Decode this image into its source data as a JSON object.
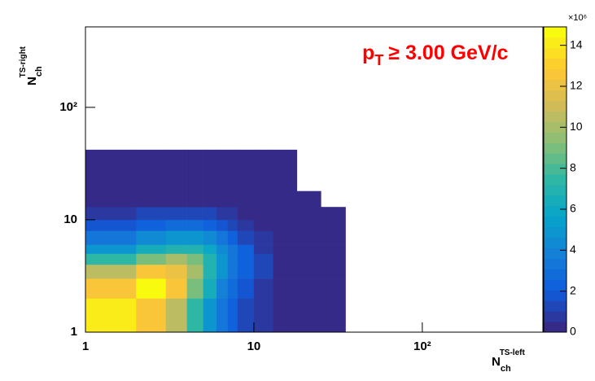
{
  "chart_data": {
    "type": "heatmap",
    "annotation": {
      "base": "p",
      "sub": "T",
      "rest": "≥ 3.00 GeV/c"
    },
    "annotation_color": "#ff0000",
    "x_label": {
      "base": "N",
      "sub": "ch",
      "sup": "TS-left"
    },
    "y_label": {
      "base": "N",
      "sub": "ch",
      "sup": "TS-right"
    },
    "x_scale": "log",
    "y_scale": "log",
    "xlim": [
      1,
      520
    ],
    "ylim": [
      1,
      520
    ],
    "xticks": [
      1,
      10,
      {
        "value": 100,
        "label": "10²"
      }
    ],
    "yticks": [
      1,
      10,
      {
        "value": 100,
        "label": "10²"
      }
    ],
    "x_edges": [
      1,
      2,
      3,
      4,
      5,
      6,
      7,
      8,
      10,
      13,
      18,
      25,
      35
    ],
    "y_edges": [
      1,
      2,
      3,
      4,
      5,
      6,
      8,
      10,
      13,
      18,
      25,
      42
    ],
    "z": [
      [
        14,
        12.5,
        10.5,
        7.5,
        5,
        3.5,
        2.5,
        1.5,
        0.8,
        0.3,
        0.1,
        0.05
      ],
      [
        12.5,
        14.5,
        12.5,
        9,
        6.5,
        4,
        3,
        2,
        1,
        0.4,
        0.1,
        0.05
      ],
      [
        10.5,
        12.5,
        12,
        10,
        7,
        5,
        3.5,
        2.5,
        1.2,
        0.5,
        0.15,
        0.05
      ],
      [
        7.5,
        9,
        10,
        9,
        7,
        5,
        3.5,
        2.5,
        1.2,
        0.5,
        0.15,
        0.05
      ],
      [
        5,
        6.5,
        7,
        7,
        6,
        4.5,
        3.5,
        2.5,
        1,
        0.4,
        0.1,
        0.04
      ],
      [
        3.5,
        4.5,
        5,
        5,
        4.5,
        3.5,
        2.5,
        1.5,
        0.7,
        0.3,
        0.1,
        0.03
      ],
      [
        2,
        2.5,
        3,
        3,
        2.5,
        2,
        1.5,
        1,
        0.5,
        0.2,
        0.05,
        0.02
      ],
      [
        1,
        1.2,
        1.5,
        1.5,
        1.2,
        1,
        0.8,
        0.5,
        0.3,
        0.1,
        0.03,
        0.01
      ],
      [
        0.4,
        0.5,
        0.5,
        0.5,
        0.4,
        0.3,
        0.2,
        0.15,
        0.1,
        0.05,
        0.01,
        null
      ],
      [
        0.1,
        0.1,
        0.1,
        0.1,
        0.1,
        0.08,
        0.06,
        0.05,
        0.03,
        0.01,
        null,
        null
      ],
      [
        0.02,
        0.02,
        0.02,
        0.02,
        0.02,
        0.02,
        0.01,
        0.01,
        0.01,
        0.01,
        null,
        null
      ]
    ],
    "zlim": [
      0,
      14.9
    ],
    "zticks": [
      0,
      2,
      4,
      6,
      8,
      10,
      12,
      14
    ],
    "z_multiplier": "×10⁶",
    "palette": [
      "#352a87",
      "#0f5cdd",
      "#1481d6",
      "#06a4ca",
      "#2eb7a4",
      "#87bf77",
      "#d1bb59",
      "#fec832",
      "#f9fb0e"
    ]
  }
}
